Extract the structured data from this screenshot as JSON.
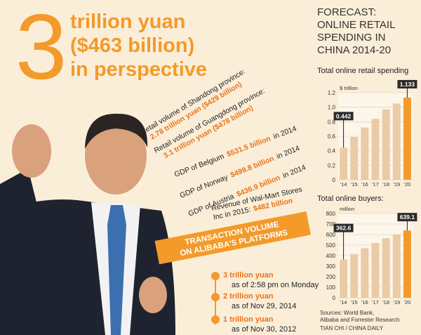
{
  "headline": {
    "number": "3",
    "lines": [
      "trillion yuan",
      "($463 billion)",
      "in perspective"
    ]
  },
  "comparisons": [
    {
      "label": "Retail volume of Shandong province:",
      "figure": "2.78 trillion yuan ($429 billion)"
    },
    {
      "label": "Retail volume of Guangdong province:",
      "figure": "3.1 trillion yuan ($478 billion)"
    },
    {
      "label": "GDP of Belgium",
      "figure": "$531.5 billion",
      "suffix": "in 2014"
    },
    {
      "label": "GDP of Norway",
      "figure": "$499.8 billion",
      "suffix": "in 2014"
    },
    {
      "label": "GDP of Austria",
      "figure": "$436.9 billion",
      "suffix": "in 2014"
    },
    {
      "label": "Revenue of Wal-Mart Stores",
      "label2": "Inc in 2015:",
      "figure": "$482 billion"
    }
  ],
  "timeline": {
    "title": [
      "TRANSACTION VOLUME",
      "ON ALIBABA'S PLATFORMS"
    ],
    "items": [
      {
        "amount": "3 trillion yuan",
        "date": "as of 2:58 pm on Monday"
      },
      {
        "amount": "2 trillion yuan",
        "date": "as of Nov 29, 2014"
      },
      {
        "amount": "1 trillion yuan",
        "date": "as of Nov 30, 2012"
      }
    ]
  },
  "forecast_heading": [
    "FORECAST:",
    "ONLINE RETAIL",
    "SPENDING IN",
    "CHINA 2014-20"
  ],
  "chart_data": [
    {
      "type": "bar",
      "title": "Total online retail spending",
      "y_label": "$ trillion",
      "categories": [
        "'14",
        "'15",
        "'16",
        "'17",
        "'18",
        "'19",
        "'20"
      ],
      "values": [
        0.442,
        0.59,
        0.72,
        0.84,
        0.97,
        1.05,
        1.133
      ],
      "colors": [
        "#e9cba5",
        "#e9cba5",
        "#e9cba5",
        "#e9cba5",
        "#e9cba5",
        "#e9cba5",
        "#f39a2b"
      ],
      "ylim": [
        0,
        1.2
      ],
      "yticks": [
        0,
        0.2,
        0.4,
        0.6,
        0.8,
        {
          "value": 1,
          "label": "1.0"
        },
        1.2
      ],
      "grid": true
    },
    {
      "type": "bar",
      "title": "Total online buyers:",
      "y_label": "million",
      "categories": [
        "'14",
        "'15",
        "'16",
        "'17",
        "'18",
        "'19",
        "'20"
      ],
      "values": [
        362.6,
        415,
        470,
        520,
        565,
        600,
        639.1
      ],
      "colors": [
        "#e9cba5",
        "#e9cba5",
        "#e9cba5",
        "#e9cba5",
        "#e9cba5",
        "#e9cba5",
        "#f39a2b"
      ],
      "ylim": [
        0,
        800
      ],
      "yticks": [
        0,
        100,
        200,
        300,
        400,
        500,
        600,
        700,
        800
      ],
      "grid": true
    }
  ],
  "sources": [
    "Sources: World Bank,",
    "Alibaba and Forrester Research"
  ],
  "credit": "TIAN CHI / CHINA DAILY"
}
